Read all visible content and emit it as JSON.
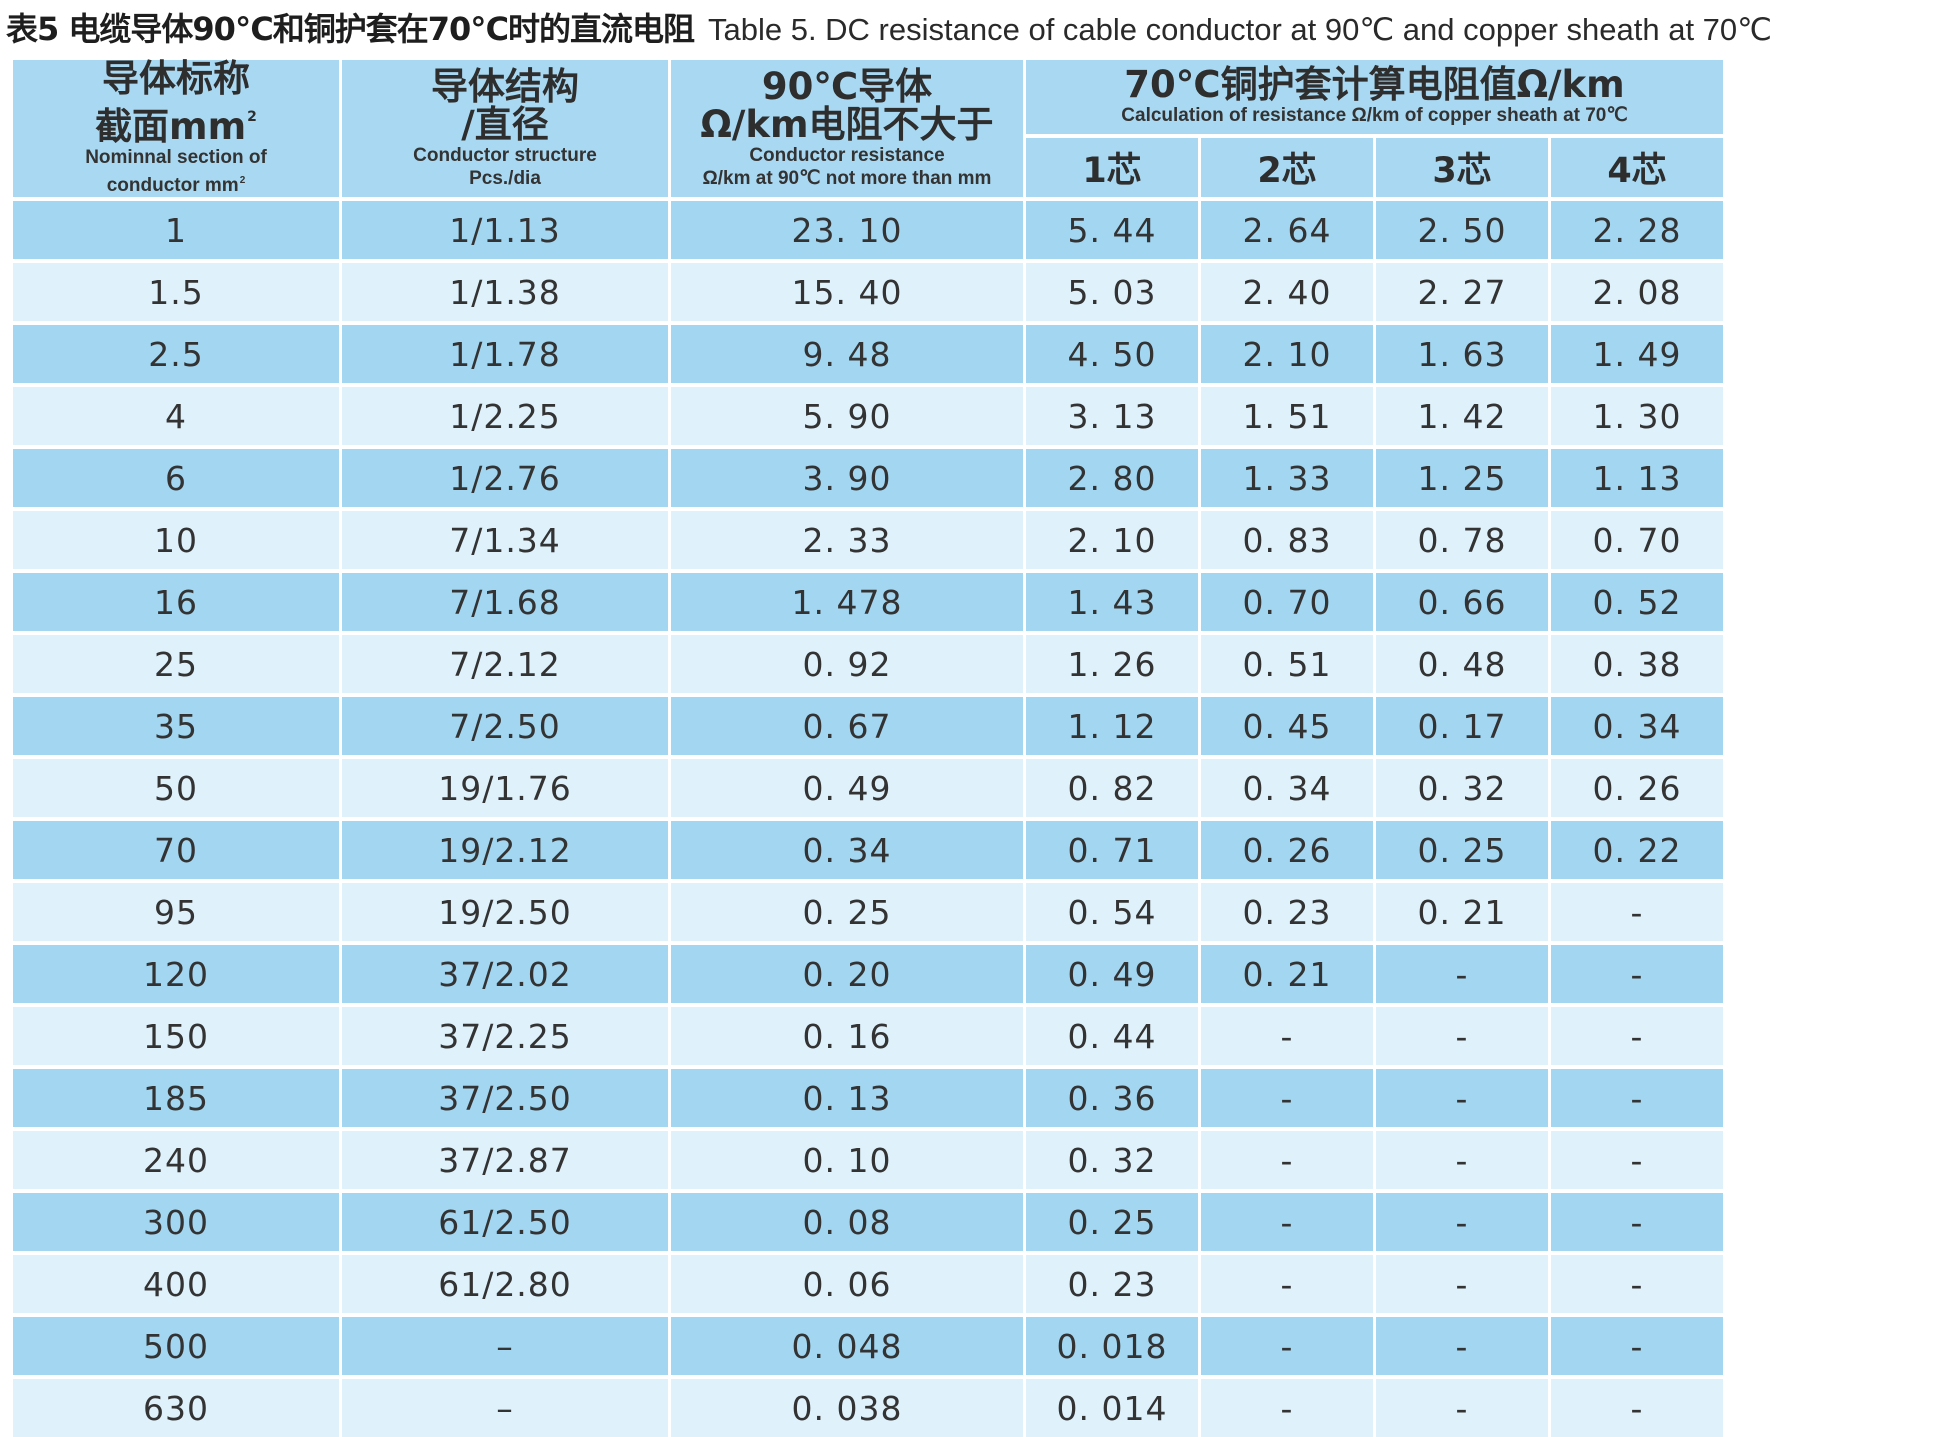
{
  "title": {
    "cn": "表5 电缆导体90℃和铜护套在70℃时的直流电阻",
    "en": "Table 5. DC resistance of cable conductor at 90℃ and copper sheath at 70℃"
  },
  "header": {
    "col1_cn_1": "导体标称",
    "col1_cn_2": "截面mm",
    "col1_en_1": "Nominnal section of",
    "col1_en_2": "conductor mm",
    "col2_cn_1": "导体结构",
    "col2_cn_2": "/直径",
    "col2_en_1": "Conductor structure",
    "col2_en_2": "Pcs./dia",
    "col3_cn_1": "90℃导体",
    "col3_cn_2": "Ω/km电阻不大于",
    "col3_en_1": "Conductor resistance",
    "col3_en_2": "Ω/km at 90℃ not more than mm",
    "group_cn": "70℃铜护套计算电阻值Ω/km",
    "group_en": "Calculation of resistance Ω/km of copper sheath at  70℃",
    "cores": [
      "1芯",
      "2芯",
      "3芯",
      "4芯"
    ]
  },
  "rows": [
    [
      "1",
      "1/1.13",
      "23. 10",
      "5. 44",
      "2. 64",
      "2. 50",
      "2. 28"
    ],
    [
      "1.5",
      "1/1.38",
      "15. 40",
      "5. 03",
      "2. 40",
      "2. 27",
      "2. 08"
    ],
    [
      "2.5",
      "1/1.78",
      "9. 48",
      "4. 50",
      "2. 10",
      "1. 63",
      "1. 49"
    ],
    [
      "4",
      "1/2.25",
      "5. 90",
      "3. 13",
      "1. 51",
      "1. 42",
      "1. 30"
    ],
    [
      "6",
      "1/2.76",
      "3. 90",
      "2. 80",
      "1. 33",
      "1. 25",
      "1. 13"
    ],
    [
      "10",
      "7/1.34",
      "2. 33",
      "2. 10",
      "0. 83",
      "0. 78",
      "0. 70"
    ],
    [
      "16",
      "7/1.68",
      "1. 478",
      "1. 43",
      "0. 70",
      "0. 66",
      "0. 52"
    ],
    [
      "25",
      "7/2.12",
      "0. 92",
      "1. 26",
      "0. 51",
      "0. 48",
      "0. 38"
    ],
    [
      "35",
      "7/2.50",
      "0. 67",
      "1. 12",
      "0. 45",
      "0. 17",
      "0. 34"
    ],
    [
      "50",
      "19/1.76",
      "0. 49",
      "0. 82",
      "0. 34",
      "0. 32",
      "0. 26"
    ],
    [
      "70",
      "19/2.12",
      "0. 34",
      "0. 71",
      "0. 26",
      "0. 25",
      "0. 22"
    ],
    [
      "95",
      "19/2.50",
      "0. 25",
      "0. 54",
      "0. 23",
      "0. 21",
      "-"
    ],
    [
      "120",
      "37/2.02",
      "0. 20",
      "0. 49",
      "0. 21",
      "-",
      "-"
    ],
    [
      "150",
      "37/2.25",
      "0. 16",
      "0. 44",
      "-",
      "-",
      "-"
    ],
    [
      "185",
      "37/2.50",
      "0. 13",
      "0. 36",
      "-",
      "-",
      "-"
    ],
    [
      "240",
      "37/2.87",
      "0. 10",
      "0. 32",
      "-",
      "-",
      "-"
    ],
    [
      "300",
      "61/2.50",
      "0. 08",
      "0. 25",
      "-",
      "-",
      "-"
    ],
    [
      "400",
      "61/2.80",
      "0. 06",
      "0. 23",
      "-",
      "-",
      "-"
    ],
    [
      "500",
      "–",
      "0. 048",
      "0. 018",
      "-",
      "-",
      "-"
    ],
    [
      "630",
      "–",
      "0. 038",
      "0. 014",
      "-",
      "-",
      "-"
    ]
  ]
}
